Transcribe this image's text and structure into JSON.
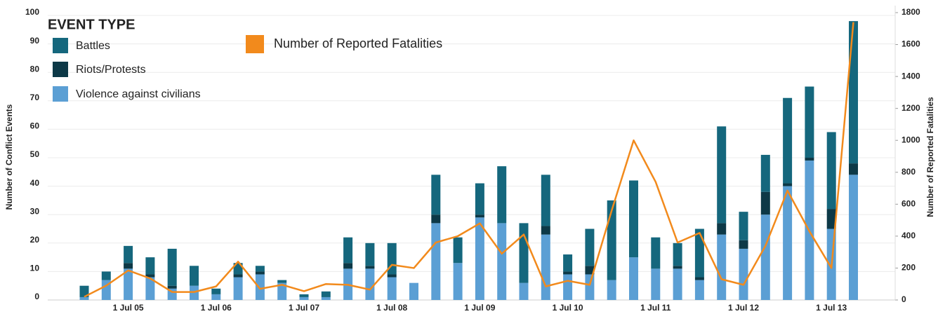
{
  "chart_data": {
    "type": "bar",
    "stacked": true,
    "legend_title": "EVENT TYPE",
    "legend": "top-left",
    "y_label": "Number of Conflict Events",
    "y2_label": "Number of Reported Fatalities",
    "grid": true,
    "categories": [
      null,
      null,
      "1 Jul 05",
      null,
      null,
      null,
      "1 Jul 06",
      null,
      null,
      null,
      "1 Jul 07",
      null,
      null,
      null,
      "1 Jul 08",
      null,
      null,
      null,
      "1 Jul 09",
      null,
      null,
      null,
      "1 Jul 10",
      null,
      null,
      null,
      "1 Jul 11",
      null,
      null,
      null,
      "1 Jul 12",
      null,
      null,
      null,
      "1 Jul 13",
      null
    ],
    "series": [
      {
        "name": "Battles",
        "color": "#15677d",
        "values": [
          4,
          3,
          6,
          6,
          13,
          7,
          2,
          4,
          2,
          1,
          1,
          2,
          9,
          8,
          11,
          0,
          14,
          9,
          11,
          20,
          21,
          18,
          6,
          13,
          28,
          27,
          11,
          8,
          17,
          34,
          10,
          13,
          30,
          25,
          27,
          50
        ]
      },
      {
        "name": "Riots/Protests",
        "color": "#0d3947",
        "values": [
          0,
          0,
          2,
          1,
          1,
          0,
          0,
          1,
          1,
          0,
          0,
          0,
          2,
          1,
          1,
          0,
          3,
          0,
          1,
          0,
          0,
          3,
          1,
          3,
          0,
          0,
          0,
          1,
          1,
          4,
          3,
          8,
          1,
          1,
          7,
          4
        ]
      },
      {
        "name": "Violence against civilians",
        "color": "#5b9fd4",
        "values": [
          1,
          7,
          11,
          8,
          4,
          5,
          2,
          8,
          9,
          6,
          1,
          1,
          11,
          11,
          8,
          6,
          27,
          13,
          29,
          27,
          6,
          23,
          9,
          9,
          7,
          15,
          11,
          11,
          7,
          23,
          18,
          30,
          40,
          49,
          25,
          44
        ]
      },
      {
        "name": "Number of Reported Fatalities",
        "color": "#f28a1c",
        "type": "line",
        "axis": "y2",
        "values": [
          20,
          90,
          185,
          135,
          50,
          50,
          85,
          240,
          70,
          95,
          55,
          100,
          95,
          65,
          220,
          200,
          360,
          400,
          480,
          290,
          410,
          85,
          120,
          95,
          560,
          1000,
          740,
          360,
          420,
          130,
          95,
          340,
          685,
          430,
          200,
          1740
        ]
      }
    ],
    "ylim": [
      0,
      100
    ],
    "yticks": [
      0,
      10,
      20,
      30,
      40,
      50,
      60,
      70,
      80,
      90,
      100
    ],
    "y2lim": [
      0,
      1800
    ],
    "y2ticks": [
      0,
      200,
      400,
      600,
      800,
      1000,
      1200,
      1400,
      1600,
      1800
    ]
  }
}
